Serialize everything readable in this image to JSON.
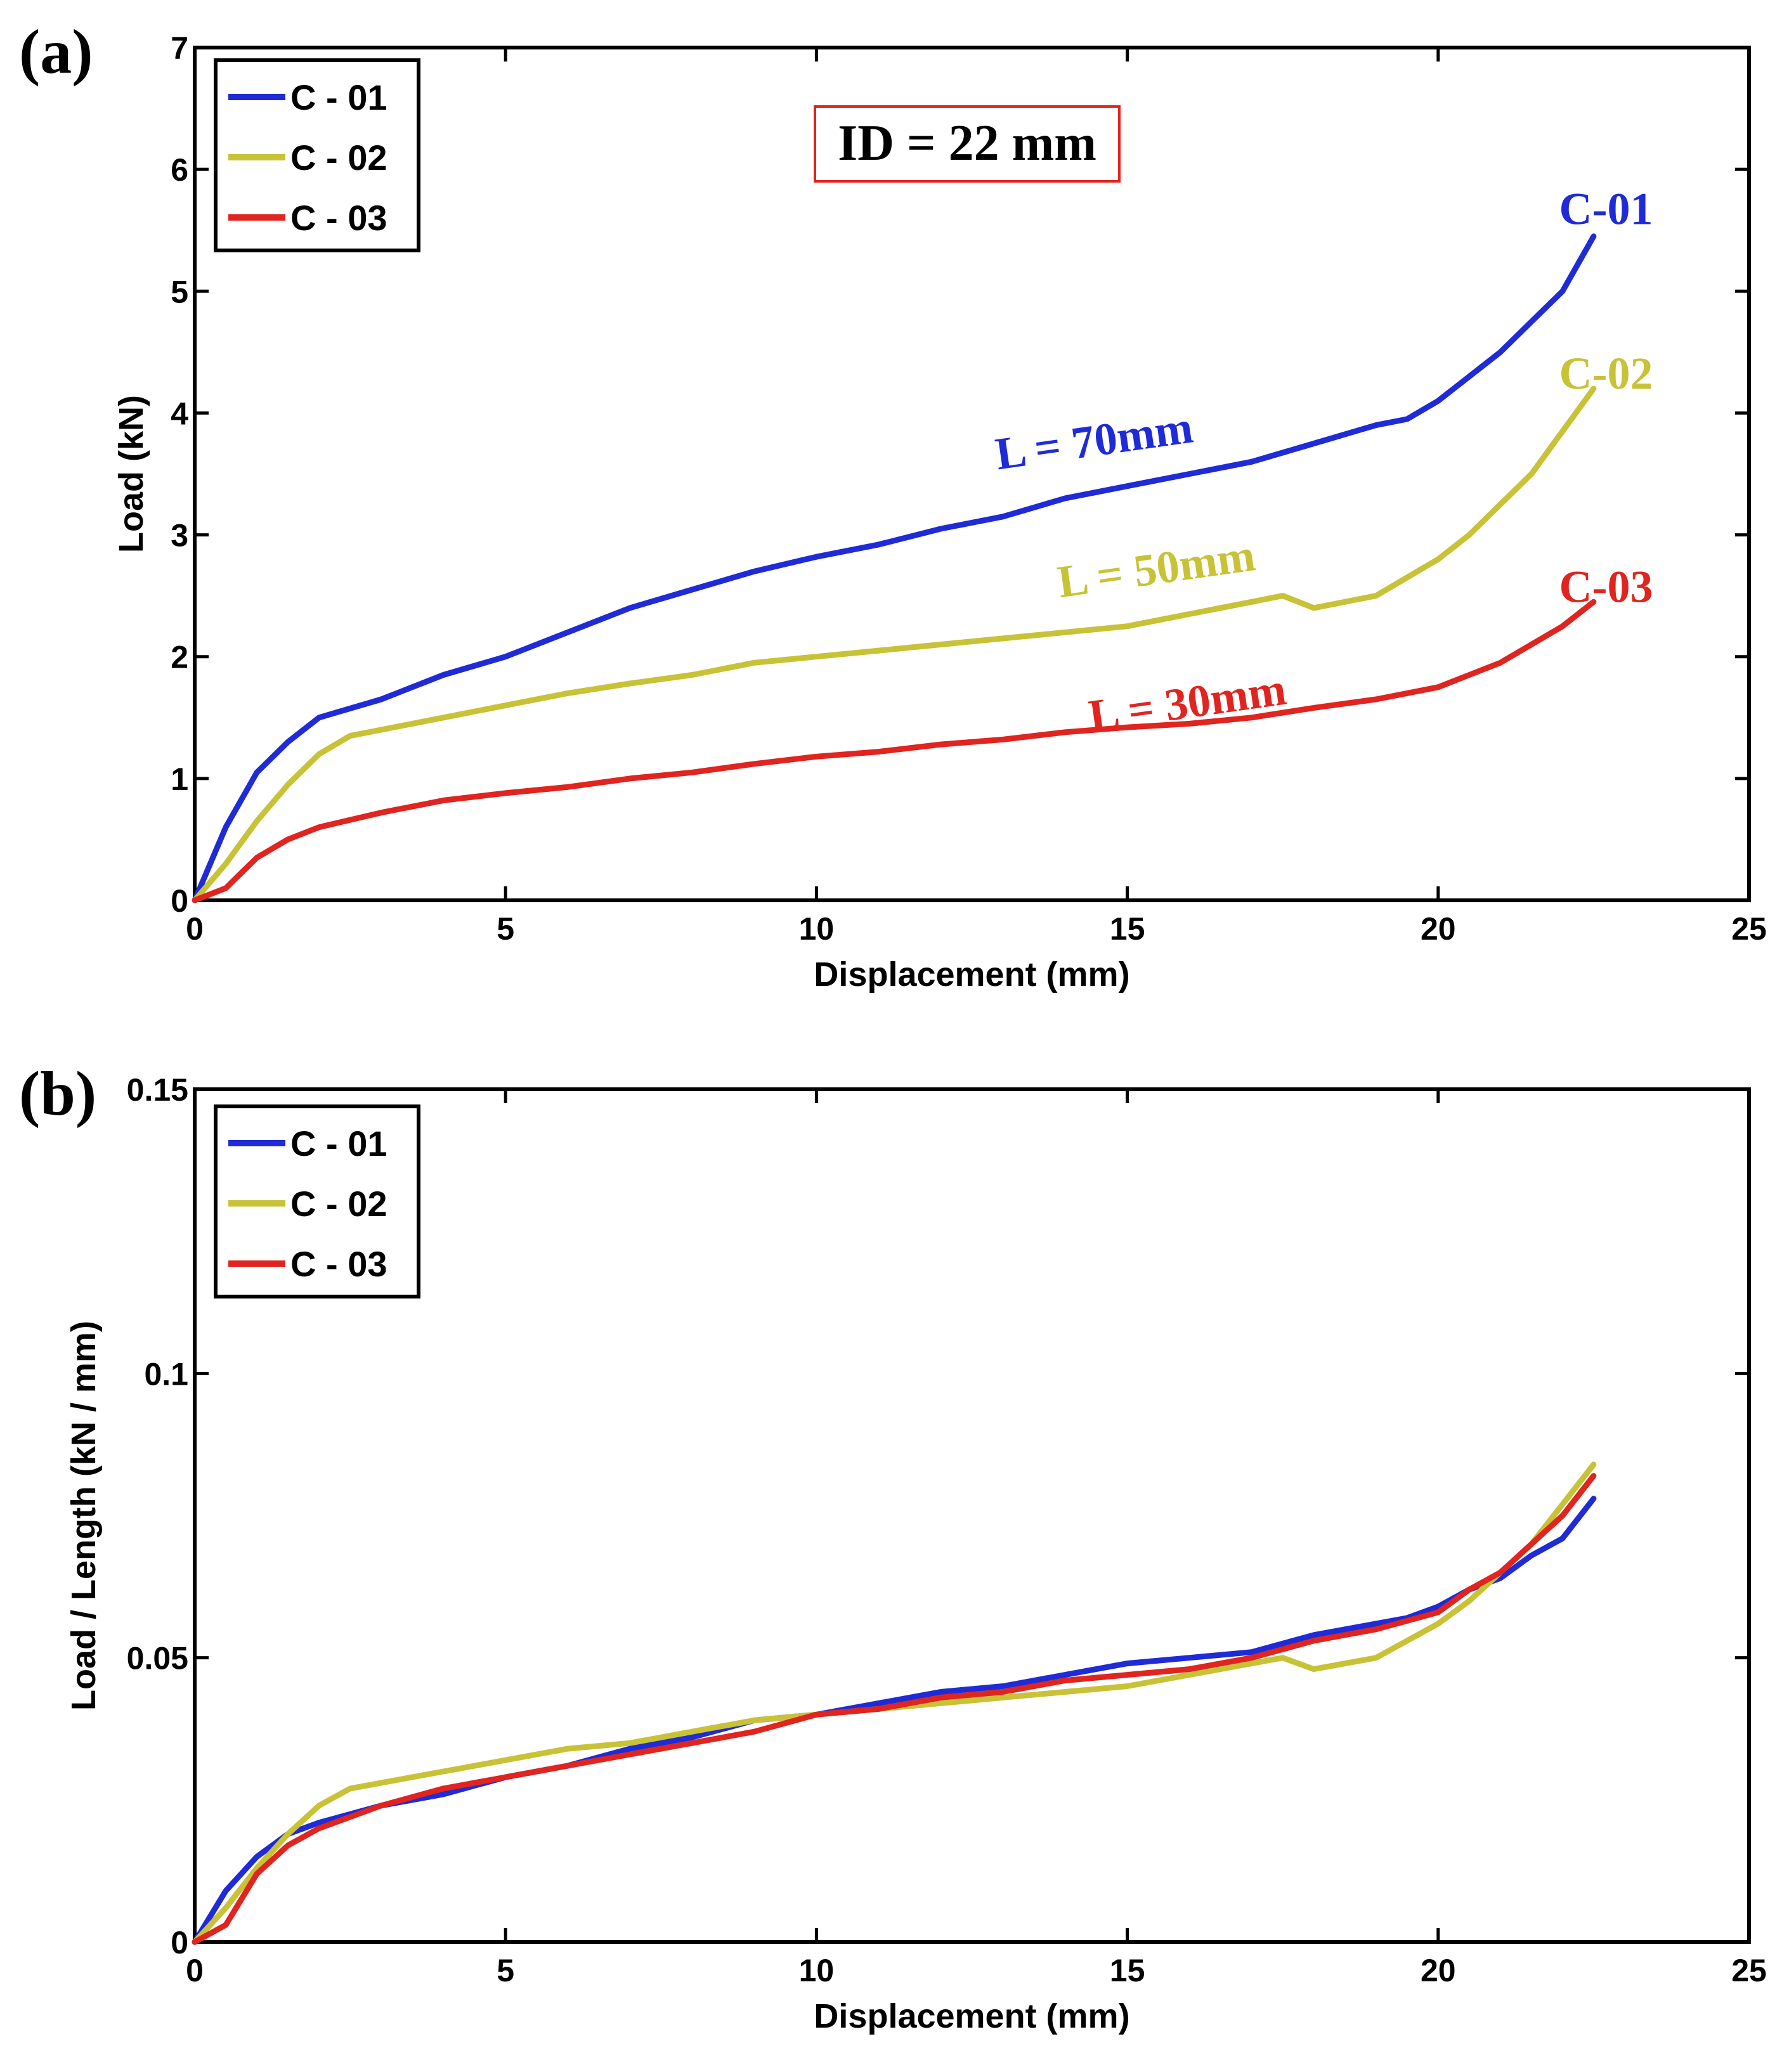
{
  "colors": {
    "C-01": "#1f2bd6",
    "C-02": "#c8c236",
    "C-03": "#e0241f"
  },
  "chart_data": [
    {
      "type": "line",
      "panel_label": "(a)",
      "xlabel": "Displacement (mm)",
      "ylabel": "Load (kN)",
      "xlim": [
        0,
        25
      ],
      "ylim": [
        0,
        7
      ],
      "xticks": [
        0,
        5,
        10,
        15,
        20,
        25
      ],
      "yticks": [
        0,
        1,
        2,
        3,
        4,
        5,
        6,
        7
      ],
      "xtick_labels": [
        "0",
        "5",
        "10",
        "15",
        "20",
        "25"
      ],
      "ytick_labels": [
        "0",
        "1",
        "2",
        "3",
        "4",
        "5",
        "6",
        "7"
      ],
      "legend": {
        "position": "top-left",
        "entries": [
          "C - 01",
          "C - 02",
          "C - 03"
        ]
      },
      "annotation_box": "ID = 22 mm",
      "series": [
        {
          "name": "C - 01",
          "end_label": "C-01",
          "length_label": "L = 70mm",
          "x": [
            0,
            0.5,
            1,
            1.5,
            2,
            3,
            4,
            5,
            6,
            7,
            8,
            9,
            10,
            11,
            12,
            13,
            14,
            15,
            16,
            17,
            18,
            19,
            19.5,
            20,
            20.5,
            21,
            21.5,
            22,
            22.5
          ],
          "y": [
            0,
            0.6,
            1.05,
            1.3,
            1.5,
            1.65,
            1.85,
            2.0,
            2.2,
            2.4,
            2.55,
            2.7,
            2.82,
            2.92,
            3.05,
            3.15,
            3.3,
            3.4,
            3.5,
            3.6,
            3.75,
            3.9,
            3.95,
            4.1,
            4.3,
            4.5,
            4.75,
            5.0,
            5.45
          ]
        },
        {
          "name": "C - 02",
          "end_label": "C-02",
          "length_label": "L = 50mm",
          "x": [
            0,
            0.5,
            1,
            1.5,
            2,
            2.5,
            3,
            4,
            5,
            6,
            7,
            8,
            9,
            10,
            11,
            12,
            13,
            14,
            15,
            16,
            17,
            17.5,
            18,
            19,
            20,
            20.5,
            21,
            21.5,
            22,
            22.5
          ],
          "y": [
            0,
            0.3,
            0.65,
            0.95,
            1.2,
            1.35,
            1.4,
            1.5,
            1.6,
            1.7,
            1.78,
            1.85,
            1.95,
            2.0,
            2.05,
            2.1,
            2.15,
            2.2,
            2.25,
            2.35,
            2.45,
            2.5,
            2.4,
            2.5,
            2.8,
            3.0,
            3.25,
            3.5,
            3.85,
            4.2
          ]
        },
        {
          "name": "C - 03",
          "end_label": "C-03",
          "length_label": "L = 30mm",
          "x": [
            0,
            0.5,
            1,
            1.5,
            2,
            3,
            4,
            5,
            6,
            7,
            8,
            9,
            10,
            11,
            12,
            13,
            14,
            15,
            16,
            17,
            18,
            19,
            20,
            20.5,
            21,
            21.5,
            22,
            22.5
          ],
          "y": [
            0,
            0.1,
            0.35,
            0.5,
            0.6,
            0.72,
            0.82,
            0.88,
            0.93,
            1.0,
            1.05,
            1.12,
            1.18,
            1.22,
            1.28,
            1.32,
            1.38,
            1.42,
            1.45,
            1.5,
            1.58,
            1.65,
            1.75,
            1.85,
            1.95,
            2.1,
            2.25,
            2.45
          ]
        }
      ]
    },
    {
      "type": "line",
      "panel_label": "(b)",
      "xlabel": "Displacement (mm)",
      "ylabel": "Load / Length (kN / mm)",
      "xlim": [
        0,
        25
      ],
      "ylim": [
        0,
        0.15
      ],
      "xticks": [
        0,
        5,
        10,
        15,
        20,
        25
      ],
      "yticks": [
        0,
        0.05,
        0.1,
        0.15
      ],
      "xtick_labels": [
        "0",
        "5",
        "10",
        "15",
        "20",
        "25"
      ],
      "ytick_labels": [
        "0",
        "0.05",
        "0.1",
        "0.15"
      ],
      "legend": {
        "position": "top-left",
        "entries": [
          "C - 01",
          "C - 02",
          "C - 03"
        ]
      },
      "series": [
        {
          "name": "C - 01",
          "x": [
            0,
            0.5,
            1,
            1.5,
            2,
            3,
            4,
            5,
            6,
            7,
            8,
            9,
            10,
            11,
            12,
            13,
            14,
            15,
            16,
            17,
            18,
            19,
            19.5,
            20,
            20.5,
            21,
            21.5,
            22,
            22.5
          ],
          "y": [
            0,
            0.009,
            0.015,
            0.019,
            0.021,
            0.024,
            0.026,
            0.029,
            0.031,
            0.034,
            0.036,
            0.039,
            0.04,
            0.042,
            0.044,
            0.045,
            0.047,
            0.049,
            0.05,
            0.051,
            0.054,
            0.056,
            0.057,
            0.059,
            0.062,
            0.064,
            0.068,
            0.071,
            0.078
          ]
        },
        {
          "name": "C - 02",
          "x": [
            0,
            0.5,
            1,
            1.5,
            2,
            2.5,
            3,
            4,
            5,
            6,
            7,
            8,
            9,
            10,
            11,
            12,
            13,
            14,
            15,
            16,
            17,
            17.5,
            18,
            19,
            20,
            20.5,
            21,
            21.5,
            22,
            22.5
          ],
          "y": [
            0,
            0.006,
            0.013,
            0.019,
            0.024,
            0.027,
            0.028,
            0.03,
            0.032,
            0.034,
            0.035,
            0.037,
            0.039,
            0.04,
            0.041,
            0.042,
            0.043,
            0.044,
            0.045,
            0.047,
            0.049,
            0.05,
            0.048,
            0.05,
            0.056,
            0.06,
            0.065,
            0.07,
            0.077,
            0.084
          ]
        },
        {
          "name": "C - 03",
          "x": [
            0,
            0.5,
            1,
            1.5,
            2,
            3,
            4,
            5,
            6,
            7,
            8,
            9,
            10,
            11,
            12,
            13,
            14,
            15,
            16,
            17,
            18,
            19,
            20,
            20.5,
            21,
            21.5,
            22,
            22.5
          ],
          "y": [
            0,
            0.003,
            0.012,
            0.017,
            0.02,
            0.024,
            0.027,
            0.029,
            0.031,
            0.033,
            0.035,
            0.037,
            0.04,
            0.041,
            0.043,
            0.044,
            0.046,
            0.047,
            0.048,
            0.05,
            0.053,
            0.055,
            0.058,
            0.062,
            0.065,
            0.07,
            0.075,
            0.082
          ]
        }
      ]
    }
  ]
}
